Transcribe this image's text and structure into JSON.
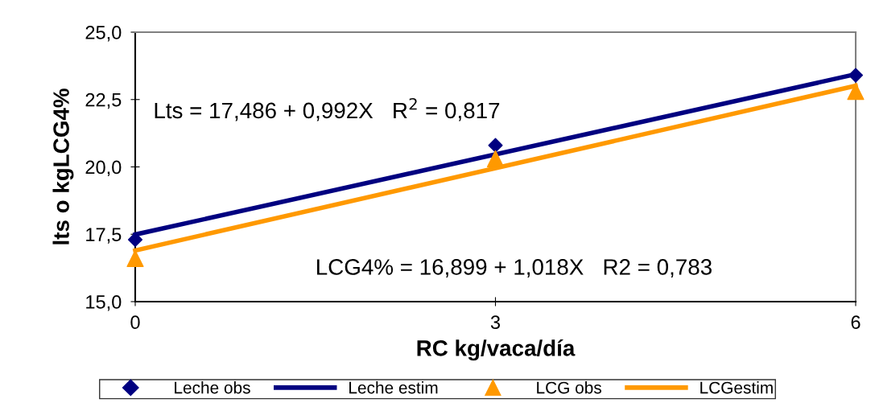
{
  "chart_data": {
    "type": "scatter",
    "xlabel": "RC kg/vaca/día",
    "ylabel": "lts o kgLCG4%",
    "series": [
      {
        "name": "Leche obs",
        "color": "#000080",
        "marker": "diamond",
        "x": [
          0,
          3,
          6
        ],
        "values": [
          17.3,
          20.8,
          23.4
        ]
      },
      {
        "name": "Leche estim",
        "type": "line",
        "color": "#000080",
        "marker": "none",
        "x": [
          0,
          6
        ],
        "values": [
          17.49,
          23.44
        ]
      },
      {
        "name": "LCG obs",
        "color": "#ff9900",
        "marker": "triangle",
        "x": [
          0,
          3,
          6
        ],
        "values": [
          16.6,
          20.3,
          22.8
        ]
      },
      {
        "name": "LCGestim",
        "type": "line",
        "color": "#ff9900",
        "marker": "none",
        "x": [
          0,
          6
        ],
        "values": [
          16.9,
          23.01
        ]
      }
    ],
    "annotations": [
      "Lts = 17,486 + 0,992X   R$^{2}$ = 0,817",
      "LCG4% = 16,899 + 1,018X   R2 = 0,783"
    ],
    "xlim": [
      0,
      6
    ],
    "xticks": [
      0,
      3,
      6
    ],
    "ylim": [
      15,
      25
    ],
    "yticks": [
      {
        "value": 15,
        "label": "15,0"
      },
      {
        "value": 17.5,
        "label": "17,5"
      },
      {
        "value": 20,
        "label": "20,0"
      },
      {
        "value": 22.5,
        "label": "22,5"
      },
      {
        "value": 25,
        "label": "25,0"
      }
    ],
    "grid": false,
    "legend": "bottom"
  }
}
